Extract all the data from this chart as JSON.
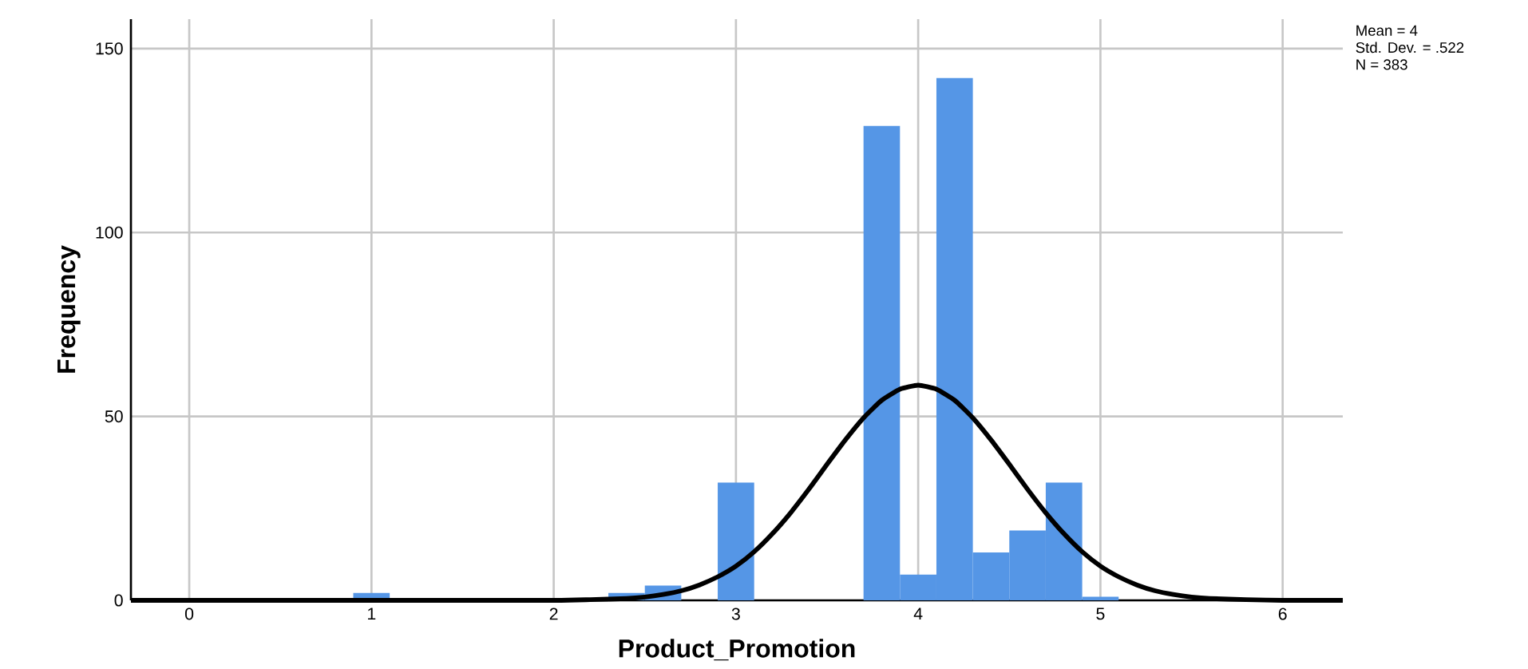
{
  "chart_data": {
    "type": "histogram",
    "xlabel": "Product_Promotion",
    "ylabel": "Frequency",
    "annotations": [
      "Mean = 4",
      "Std. Dev. = .522",
      "N = 383"
    ],
    "xlim": [
      -0.32,
      6.33
    ],
    "ylim": [
      0,
      158
    ],
    "xticks": [
      0,
      1,
      2,
      3,
      4,
      5,
      6
    ],
    "yticks": [
      0,
      50,
      100,
      150
    ],
    "grid": true,
    "marker": "none",
    "line_style": "solid",
    "series": [
      {
        "type": "histogram",
        "color": "#5596e6",
        "bins": [
          0.9,
          1.1,
          1.3,
          1.5,
          1.7,
          1.9,
          2.1,
          2.3,
          2.5,
          2.7,
          2.9,
          3.1,
          3.3,
          3.5,
          3.7,
          3.9,
          4.1,
          4.3,
          4.5,
          4.7,
          4.9,
          5.1
        ],
        "values": [
          2,
          0,
          0,
          0,
          0,
          0,
          0,
          2,
          4,
          0,
          32,
          0,
          0,
          0,
          129,
          7,
          142,
          13,
          19,
          32,
          1
        ]
      },
      {
        "type": "line",
        "color": "#000000",
        "x": [
          -0.32,
          1,
          2,
          2.2,
          2.4,
          2.5,
          2.6,
          2.7,
          2.8,
          2.9,
          3.0,
          3.1,
          3.2,
          3.3,
          3.4,
          3.5,
          3.6,
          3.7,
          3.8,
          3.9,
          4.0,
          4.1,
          4.2,
          4.3,
          4.4,
          4.5,
          4.6,
          4.7,
          4.8,
          4.9,
          5.0,
          5.1,
          5.2,
          5.3,
          5.4,
          5.5,
          5.6,
          5.8,
          6,
          6.33
        ],
        "values": [
          0,
          0,
          0,
          0.2,
          0.5,
          0.9,
          1.6,
          2.6,
          4.2,
          6.4,
          9.3,
          13.2,
          18.1,
          23.8,
          30.2,
          37.0,
          43.6,
          49.6,
          54.4,
          57.4,
          58.5,
          57.4,
          54.4,
          49.6,
          43.6,
          37.0,
          30.2,
          23.8,
          18.1,
          13.2,
          9.3,
          6.4,
          4.2,
          2.6,
          1.6,
          0.9,
          0.5,
          0.2,
          0,
          0
        ]
      }
    ]
  }
}
